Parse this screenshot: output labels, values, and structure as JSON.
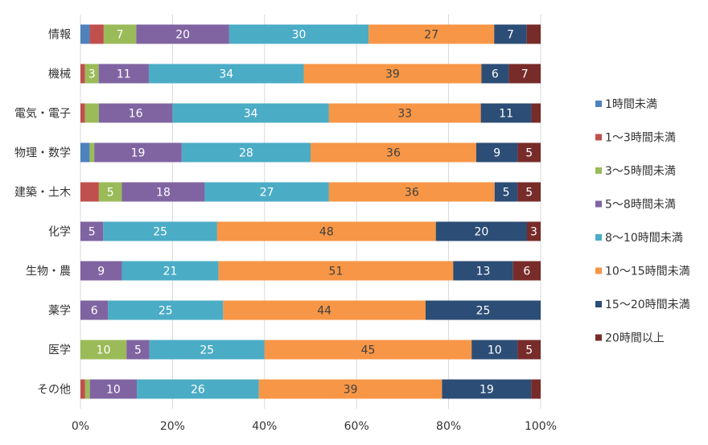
{
  "chart_data": {
    "type": "bar",
    "orientation": "horizontal",
    "stacked": "percent",
    "categories": [
      "情報",
      "機械",
      "電気・電子",
      "物理・数学",
      "建築・土木",
      "化学",
      "生物・農",
      "薬学",
      "医学",
      "その他"
    ],
    "series": [
      {
        "name": "1時間未満",
        "color": "#4f81bd",
        "values": [
          2,
          0,
          0,
          2,
          0,
          0,
          0,
          0,
          0,
          0
        ],
        "labels": [
          "",
          "",
          "",
          "",
          "",
          "",
          "",
          "",
          "",
          ""
        ]
      },
      {
        "name": "1～3時間未満",
        "color": "#c0504d",
        "values": [
          3,
          1,
          1,
          0,
          4,
          0,
          0,
          0,
          0,
          1
        ],
        "labels": [
          "",
          "",
          "",
          "",
          "",
          "",
          "",
          "",
          "",
          ""
        ]
      },
      {
        "name": "3～5時間未満",
        "color": "#9bbb59",
        "values": [
          7,
          3,
          3,
          1,
          5,
          0,
          0,
          0,
          10,
          1
        ],
        "labels": [
          "7",
          "3",
          "",
          "",
          "5",
          "",
          "",
          "",
          "10",
          ""
        ]
      },
      {
        "name": "5～8時間未満",
        "color": "#8064a2",
        "values": [
          20,
          11,
          16,
          19,
          18,
          5,
          9,
          6,
          5,
          10
        ],
        "labels": [
          "20",
          "11",
          "16",
          "19",
          "18",
          "5",
          "9",
          "6",
          "5",
          "10"
        ]
      },
      {
        "name": "8～10時間未満",
        "color": "#4bacc6",
        "values": [
          30,
          34,
          34,
          28,
          27,
          25,
          21,
          25,
          25,
          26
        ],
        "labels": [
          "30",
          "34",
          "34",
          "28",
          "27",
          "25",
          "21",
          "25",
          "25",
          "26"
        ]
      },
      {
        "name": "10～15時間未満",
        "color": "#f79646",
        "values": [
          27,
          39,
          33,
          36,
          36,
          48,
          51,
          44,
          45,
          39
        ],
        "labels": [
          "27",
          "39",
          "33",
          "36",
          "36",
          "48",
          "51",
          "44",
          "45",
          "39"
        ]
      },
      {
        "name": "15～20時間未満",
        "color": "#2c4d75",
        "values": [
          7,
          6,
          11,
          9,
          5,
          20,
          13,
          25,
          10,
          19
        ],
        "labels": [
          "7",
          "6",
          "11",
          "9",
          "5",
          "20",
          "13",
          "25",
          "10",
          "19"
        ]
      },
      {
        "name": "20時間以上",
        "color": "#772c2a",
        "values": [
          3,
          7,
          2,
          5,
          5,
          3,
          6,
          0,
          5,
          2
        ],
        "labels": [
          "",
          "7",
          "",
          "5",
          "5",
          "3",
          "6",
          "",
          "5",
          ""
        ]
      }
    ],
    "xlim": [
      0,
      100
    ],
    "xticks": [
      "0%",
      "20%",
      "40%",
      "60%",
      "80%",
      "100%"
    ],
    "grid": "vertical",
    "legend": "right",
    "title": "",
    "xlabel": "",
    "ylabel": ""
  }
}
